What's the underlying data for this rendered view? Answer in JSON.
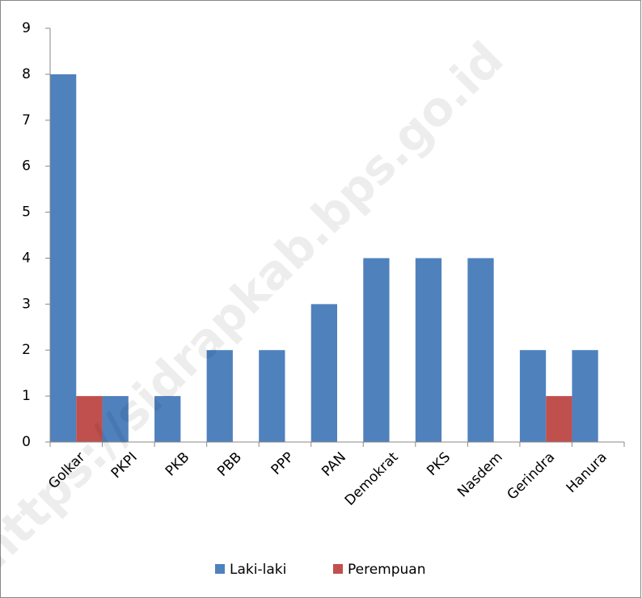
{
  "chart_data": {
    "type": "bar",
    "categories": [
      "Golkar",
      "PKPI",
      "PKB",
      "PBB",
      "PPP",
      "PAN",
      "Demokrat",
      "PKS",
      "Nasdem",
      "Gerindra",
      "Hanura"
    ],
    "series": [
      {
        "name": "Laki-laki",
        "color": "#4f81bd",
        "values": [
          8,
          1,
          1,
          2,
          2,
          3,
          4,
          4,
          4,
          2,
          2
        ]
      },
      {
        "name": "Perempuan",
        "color": "#c0504d",
        "values": [
          1,
          0,
          0,
          0,
          0,
          0,
          0,
          0,
          0,
          1,
          0
        ]
      }
    ],
    "ylim": [
      0,
      9
    ],
    "yticks": [
      0,
      1,
      2,
      3,
      4,
      5,
      6,
      7,
      8,
      9
    ],
    "grid": false,
    "legend": "bottom",
    "watermark": "https://sidrapkab.bps.go.id"
  }
}
